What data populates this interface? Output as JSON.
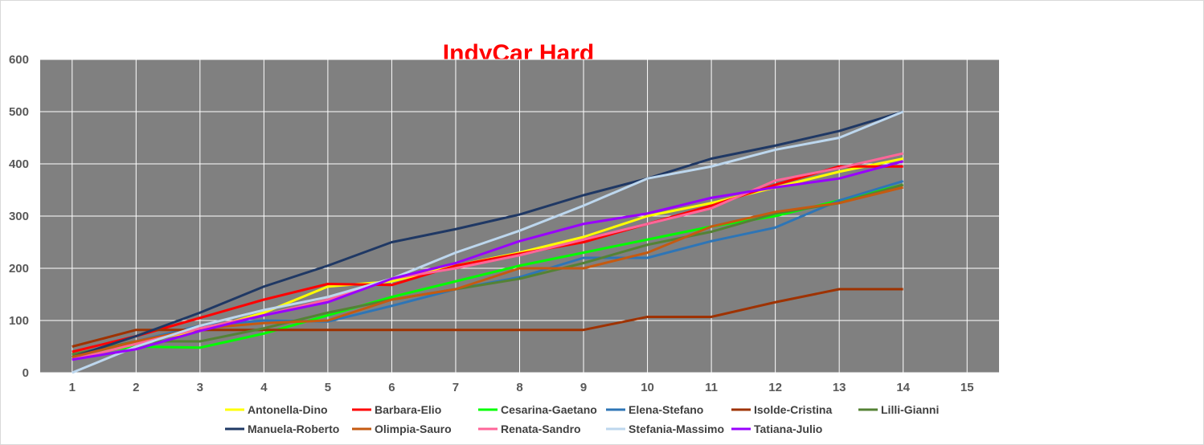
{
  "chart_data": {
    "type": "line",
    "title": "IndyCar Hard",
    "xlabel": "",
    "ylabel": "",
    "x": [
      1,
      2,
      3,
      4,
      5,
      6,
      7,
      8,
      9,
      10,
      11,
      12,
      13,
      14
    ],
    "x_ticks": [
      1,
      2,
      3,
      4,
      5,
      6,
      7,
      8,
      9,
      10,
      11,
      12,
      13,
      14,
      15
    ],
    "xlim": [
      1,
      15
    ],
    "y_ticks": [
      0,
      100,
      200,
      300,
      400,
      500,
      600
    ],
    "ylim": [
      0,
      600
    ],
    "grid": true,
    "plot_background": "#808080",
    "grid_color": "#ffffff",
    "legend_position": "bottom",
    "series": [
      {
        "name": "Antonella-Dino",
        "color": "#ffff00",
        "values": [
          30,
          60,
          80,
          115,
          165,
          175,
          205,
          230,
          260,
          300,
          325,
          355,
          385,
          410
        ]
      },
      {
        "name": "Barbara-Elio",
        "color": "#ff0000",
        "values": [
          40,
          70,
          105,
          140,
          170,
          168,
          205,
          228,
          250,
          285,
          320,
          360,
          395,
          395
        ]
      },
      {
        "name": "Cesarina-Gaetano",
        "color": "#00ff00",
        "values": [
          35,
          50,
          48,
          75,
          110,
          145,
          175,
          205,
          230,
          255,
          280,
          300,
          330,
          360
        ]
      },
      {
        "name": "Elena-Stefano",
        "color": "#2e75b6",
        "values": [
          30,
          60,
          90,
          100,
          98,
          128,
          160,
          183,
          220,
          220,
          252,
          278,
          330,
          367
        ]
      },
      {
        "name": "Isolde-Cristina",
        "color": "#9e3200",
        "values": [
          50,
          82,
          82,
          82,
          82,
          82,
          82,
          82,
          82,
          107,
          107,
          135,
          160,
          160
        ]
      },
      {
        "name": "Lilli-Gianni",
        "color": "#548235",
        "values": [
          35,
          60,
          60,
          85,
          115,
          140,
          160,
          180,
          210,
          245,
          270,
          305,
          325,
          360
        ]
      },
      {
        "name": "Manuela-Roberto",
        "color": "#1f3864",
        "values": [
          30,
          70,
          115,
          165,
          205,
          250,
          275,
          303,
          340,
          372,
          410,
          435,
          463,
          500
        ]
      },
      {
        "name": "Olimpia-Sauro",
        "color": "#c55a11",
        "values": [
          30,
          60,
          85,
          95,
          100,
          140,
          160,
          200,
          200,
          230,
          280,
          308,
          325,
          355
        ]
      },
      {
        "name": "Renata-Sandro",
        "color": "#ff6699",
        "values": [
          25,
          55,
          85,
          110,
          140,
          180,
          200,
          225,
          255,
          285,
          315,
          368,
          392,
          420
        ]
      },
      {
        "name": "Stefania-Massimo",
        "color": "#bdd7ee",
        "values": [
          0,
          50,
          90,
          120,
          145,
          180,
          230,
          272,
          320,
          372,
          395,
          427,
          450,
          500
        ]
      },
      {
        "name": "Tatiana-Julio",
        "color": "#9900ff",
        "values": [
          25,
          45,
          80,
          110,
          135,
          180,
          210,
          252,
          285,
          305,
          335,
          355,
          372,
          405
        ]
      }
    ]
  }
}
